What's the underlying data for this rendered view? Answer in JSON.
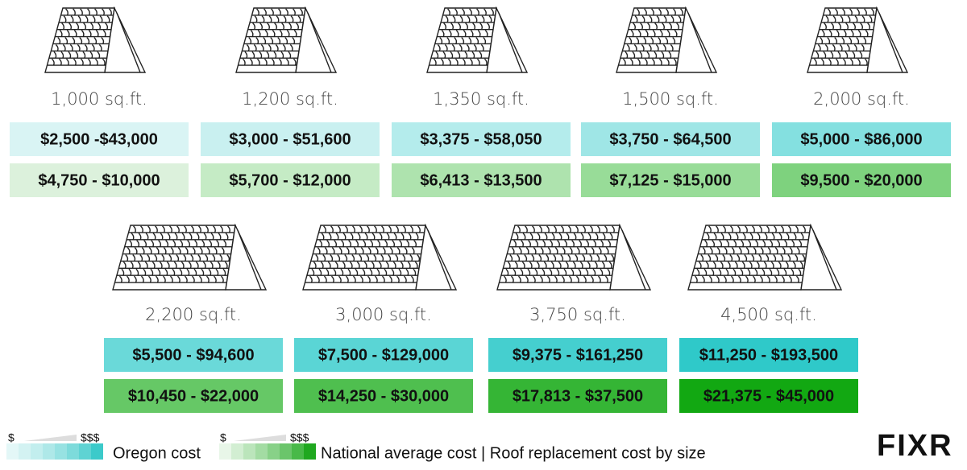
{
  "items": [
    {
      "size": "1,000 sq.ft.",
      "oregon": "$2,500 -$43,000",
      "national": "$4,750 - $10,000"
    },
    {
      "size": "1,200 sq.ft.",
      "oregon": "$3,000 - $51,600",
      "national": "$5,700 - $12,000"
    },
    {
      "size": "1,350 sq.ft.",
      "oregon": "$3,375 - $58,050",
      "national": "$6,413 - $13,500"
    },
    {
      "size": "1,500 sq.ft.",
      "oregon": "$3,750 - $64,500",
      "national": "$7,125 - $15,000"
    },
    {
      "size": "2,000 sq.ft.",
      "oregon": "$5,000 - $86,000",
      "national": "$9,500 - $20,000"
    },
    {
      "size": "2,200 sq.ft.",
      "oregon": "$5,500 - $94,600",
      "national": "$10,450 - $22,000"
    },
    {
      "size": "3,000 sq.ft.",
      "oregon": "$7,500 - $129,000",
      "national": "$14,250 - $30,000"
    },
    {
      "size": "3,750 sq.ft.",
      "oregon": "$9,375 - $161,250",
      "national": "$17,813 - $37,500"
    },
    {
      "size": "4,500 sq.ft.",
      "oregon": "$11,250 - $193,500",
      "national": "$21,375 - $45,000"
    }
  ],
  "legend": {
    "oregon_low": "$",
    "oregon_high": "$$$",
    "oregon_label": "Oregon cost",
    "national_low": "$",
    "national_high": "$$$",
    "national_label": "National average cost | Roof replacement cost by size"
  },
  "logo": "FIXR"
}
